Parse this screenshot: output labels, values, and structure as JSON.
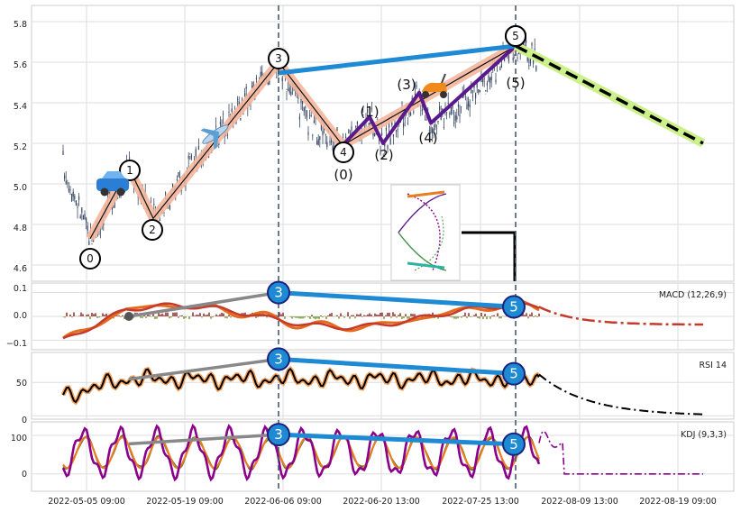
{
  "chart_data": [
    {
      "type": "candlestick",
      "ylim": [
        4.52,
        5.88
      ],
      "y_ticks": [
        "4.6",
        "4.8",
        "5.0",
        "5.2",
        "5.4",
        "5.6",
        "5.8"
      ],
      "x_ticks": [
        "2022-05-05 09:00",
        "2022-05-19 09:00",
        "2022-06-06 09:00",
        "2022-06-20 13:00",
        "2022-07-25 13:00",
        "2022-08-09 13:00",
        "2022-08-19 09:00"
      ],
      "wave_labels": [
        {
          "label": "0",
          "circled": true,
          "value": 4.64
        },
        {
          "label": "1",
          "circled": true,
          "value": 5.08
        },
        {
          "label": "2",
          "circled": true,
          "value": 4.78
        },
        {
          "label": "3",
          "circled": true,
          "value": 5.63
        },
        {
          "label": "4",
          "circled": true,
          "value": 5.17
        },
        {
          "label": "5",
          "circled": true,
          "value": 5.74
        },
        {
          "label": "5",
          "circled": true,
          "value": 5.74
        },
        {
          "label": "(0)",
          "circled": false,
          "value": 5.06
        },
        {
          "label": "(1)",
          "circled": false,
          "value": 5.35
        },
        {
          "label": "(2)",
          "circled": false,
          "value": 5.14
        },
        {
          "label": "(3)",
          "circled": false,
          "value": 5.48
        },
        {
          "label": "(4)",
          "circled": false,
          "value": 5.24
        },
        {
          "label": "(5)",
          "circled": false,
          "value": 5.51
        }
      ],
      "primary_waves": [
        4.73,
        5.08,
        4.83,
        5.6,
        5.19,
        5.68
      ],
      "sub_waves": [
        5.19,
        5.33,
        5.2,
        5.45,
        5.3,
        5.68
      ],
      "trendline_3_5": [
        5.6,
        5.68
      ],
      "forecast": [
        5.68,
        5.2
      ],
      "markers": {
        "car": "car-icon",
        "plane": "airplane-icon",
        "scooter": "scooter-icon",
        "inset": "inset-wave-diagram"
      },
      "colors": {
        "candles": "#3b4a66",
        "primary_band": "#f4b69c",
        "sub_wave": "#5b1a8c",
        "trend_blue": "#1f8ad4",
        "forecast_band": "#ccf08a",
        "divergence_gray": "#888888"
      }
    },
    {
      "type": "line",
      "indicator": "MACD (12,26,9)",
      "ylim": [
        -0.14,
        0.14
      ],
      "y_ticks": [
        "0.1",
        "0.0",
        "−0.1"
      ],
      "markers": {
        "wave3": "3",
        "wave5": "5"
      },
      "colors": {
        "macd": "#e46a1e",
        "signal": "#c43b2c",
        "hist_pos": "#8b1a1a",
        "hist_neg": "#6b8e23",
        "forecast": "#c43b2c"
      }
    },
    {
      "type": "line",
      "indicator": "RSI 14",
      "ylim": [
        -5,
        95
      ],
      "y_ticks": [
        "50",
        "0"
      ],
      "markers": {
        "wave3": "3",
        "wave5": "5"
      },
      "colors": {
        "rsi": "#000000",
        "rsi_glow": "#f4a460"
      }
    },
    {
      "type": "line",
      "indicator": "KDJ (9,3,3)",
      "ylim": [
        -45,
        135
      ],
      "y_ticks": [
        "100",
        "0"
      ],
      "markers": {
        "wave3": "3",
        "wave5": "5"
      },
      "colors": {
        "k": "#8b008b",
        "d": "#e67e22",
        "j": "#556b2f"
      }
    }
  ]
}
